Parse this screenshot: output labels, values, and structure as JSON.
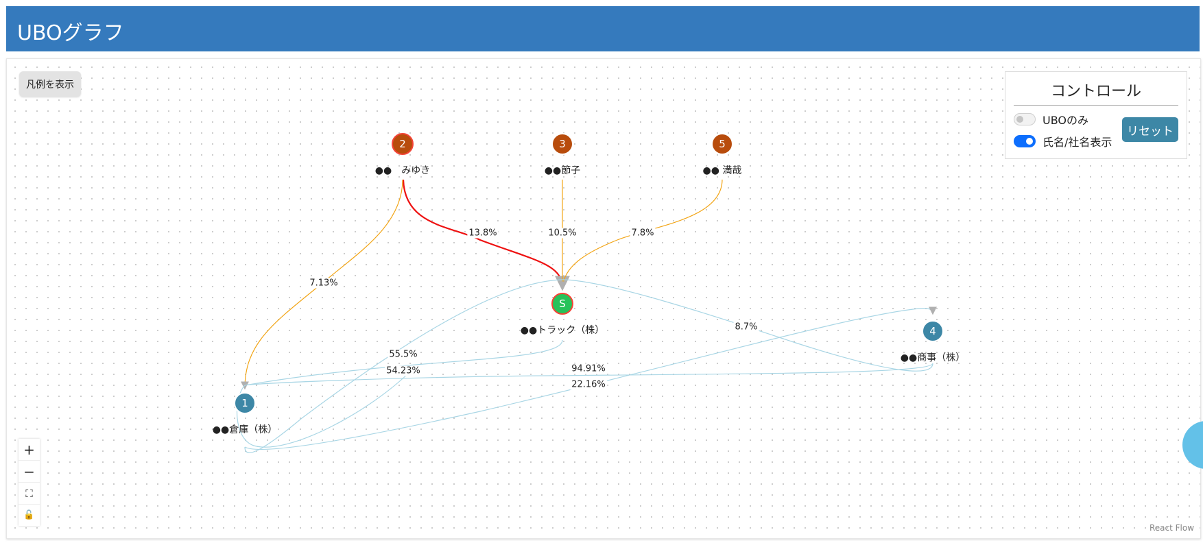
{
  "header": {
    "title": "UBOグラフ"
  },
  "legend_button": {
    "label": "凡例を表示"
  },
  "control": {
    "title": "コントロール",
    "toggles": [
      {
        "label": "UBOのみ",
        "checked": false
      },
      {
        "label": "氏名/社名表示",
        "checked": true
      }
    ],
    "reset_label": "リセット"
  },
  "nodes": [
    {
      "id": "2",
      "badge": "2",
      "label": "●●　みゆき",
      "kind": "person-ubo"
    },
    {
      "id": "3",
      "badge": "3",
      "label": "●●節子",
      "kind": "person"
    },
    {
      "id": "5",
      "badge": "5",
      "label": "●● 満哉",
      "kind": "person"
    },
    {
      "id": "S",
      "badge": "S",
      "label": "●●トラック（株）",
      "kind": "subject"
    },
    {
      "id": "4",
      "badge": "4",
      "label": "●●商事（株）",
      "kind": "company"
    },
    {
      "id": "1",
      "badge": "1",
      "label": "●●倉庫（株）",
      "kind": "company"
    }
  ],
  "edges": [
    {
      "from": "2",
      "to": "S",
      "label": "13.8%",
      "color": "#ee1111"
    },
    {
      "from": "3",
      "to": "S",
      "label": "10.5%",
      "color": "#f2a516"
    },
    {
      "from": "5",
      "to": "S",
      "label": "7.8%",
      "color": "#f2a516"
    },
    {
      "from": "2",
      "to": "1",
      "label": "7.13%",
      "color": "#f2a516"
    },
    {
      "from": "1",
      "to": "S",
      "label": "55.5%",
      "color": "#a9d6e5"
    },
    {
      "from": "4",
      "to": "S",
      "label": "8.7%",
      "color": "#a9d6e5"
    },
    {
      "from": "S",
      "to": "1",
      "label": "54.23%",
      "color": "#a9d6e5"
    },
    {
      "from": "4",
      "to": "1",
      "label": "94.91%",
      "color": "#a9d6e5"
    },
    {
      "from": "1",
      "to": "4",
      "label": "22.16%",
      "color": "#a9d6e5"
    }
  ],
  "zoom_controls": [
    {
      "name": "zoom-in",
      "glyph": "+"
    },
    {
      "name": "zoom-out",
      "glyph": "−"
    },
    {
      "name": "fit-view",
      "glyph": "⛶"
    },
    {
      "name": "lock",
      "glyph": "🔓"
    }
  ],
  "attribution": "React Flow"
}
